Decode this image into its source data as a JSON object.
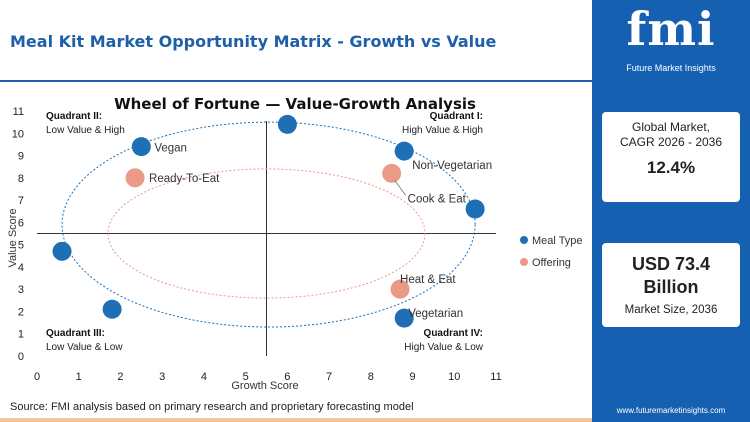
{
  "header": {
    "title": "Meal Kit Market Opportunity Matrix - Growth vs Value"
  },
  "brand": {
    "logo": "fmi",
    "tagline": "Future Market Insights",
    "url": "www.futuremarketinsights.com"
  },
  "kpis": {
    "cagr": {
      "label_line1": "Global Market,",
      "label_line2": "CAGR 2026 - 2036",
      "value": "12.4%"
    },
    "size": {
      "value_line1": "USD 73.4",
      "value_line2": "Billion",
      "label": "Market Size, 2036"
    }
  },
  "footer": {
    "source": "Source: FMI analysis based on primary research and proprietary forecasting model"
  },
  "colors": {
    "brand_blue": "#1560b0",
    "meal_type": "#1e6fb5",
    "offering": "#ea9a86"
  },
  "chart_data": {
    "type": "scatter",
    "title": "Wheel of Fortune — Value-Growth Analysis",
    "xlabel": "Growth Score",
    "ylabel": "Value Score",
    "xlim": [
      0,
      11
    ],
    "ylim": [
      0,
      11
    ],
    "xticks": [
      0,
      1,
      2,
      3,
      4,
      5,
      6,
      7,
      8,
      9,
      10,
      11
    ],
    "yticks": [
      0,
      1,
      2,
      3,
      4,
      5,
      6,
      7,
      8,
      9,
      10,
      11
    ],
    "grid": false,
    "legend_position": "right",
    "quadrant_divider": {
      "x": 5.5,
      "y": 5.5
    },
    "quadrants": [
      {
        "id": "q1",
        "title": "Quadrant I:",
        "subtitle": "High Value & High"
      },
      {
        "id": "q2",
        "title": "Quadrant II:",
        "subtitle": "Low Value & High"
      },
      {
        "id": "q3",
        "title": "Quadrant III:",
        "subtitle": "Low Value & Low"
      },
      {
        "id": "q4",
        "title": "Quadrant IV:",
        "subtitle": "High Value & Low"
      }
    ],
    "series": [
      {
        "name": "Meal Type",
        "color": "#1e6fb5",
        "points": [
          {
            "x": 2.5,
            "y": 9.4,
            "label": "Vegan"
          },
          {
            "x": 8.8,
            "y": 9.2,
            "label": "Non-Vegetarian"
          },
          {
            "x": 8.8,
            "y": 1.7,
            "label": "Vegetarian"
          },
          {
            "x": 6.0,
            "y": 10.4,
            "label": ""
          },
          {
            "x": 10.5,
            "y": 6.6,
            "label": ""
          },
          {
            "x": 0.6,
            "y": 4.7,
            "label": ""
          },
          {
            "x": 1.8,
            "y": 2.1,
            "label": ""
          }
        ]
      },
      {
        "name": "Offering",
        "color": "#ea9a86",
        "points": [
          {
            "x": 2.35,
            "y": 8.0,
            "label": "Ready-To-Eat"
          },
          {
            "x": 8.5,
            "y": 8.2,
            "label": "Cook & Eat"
          },
          {
            "x": 8.7,
            "y": 3.0,
            "label": "Heat & Eat"
          }
        ]
      }
    ]
  }
}
